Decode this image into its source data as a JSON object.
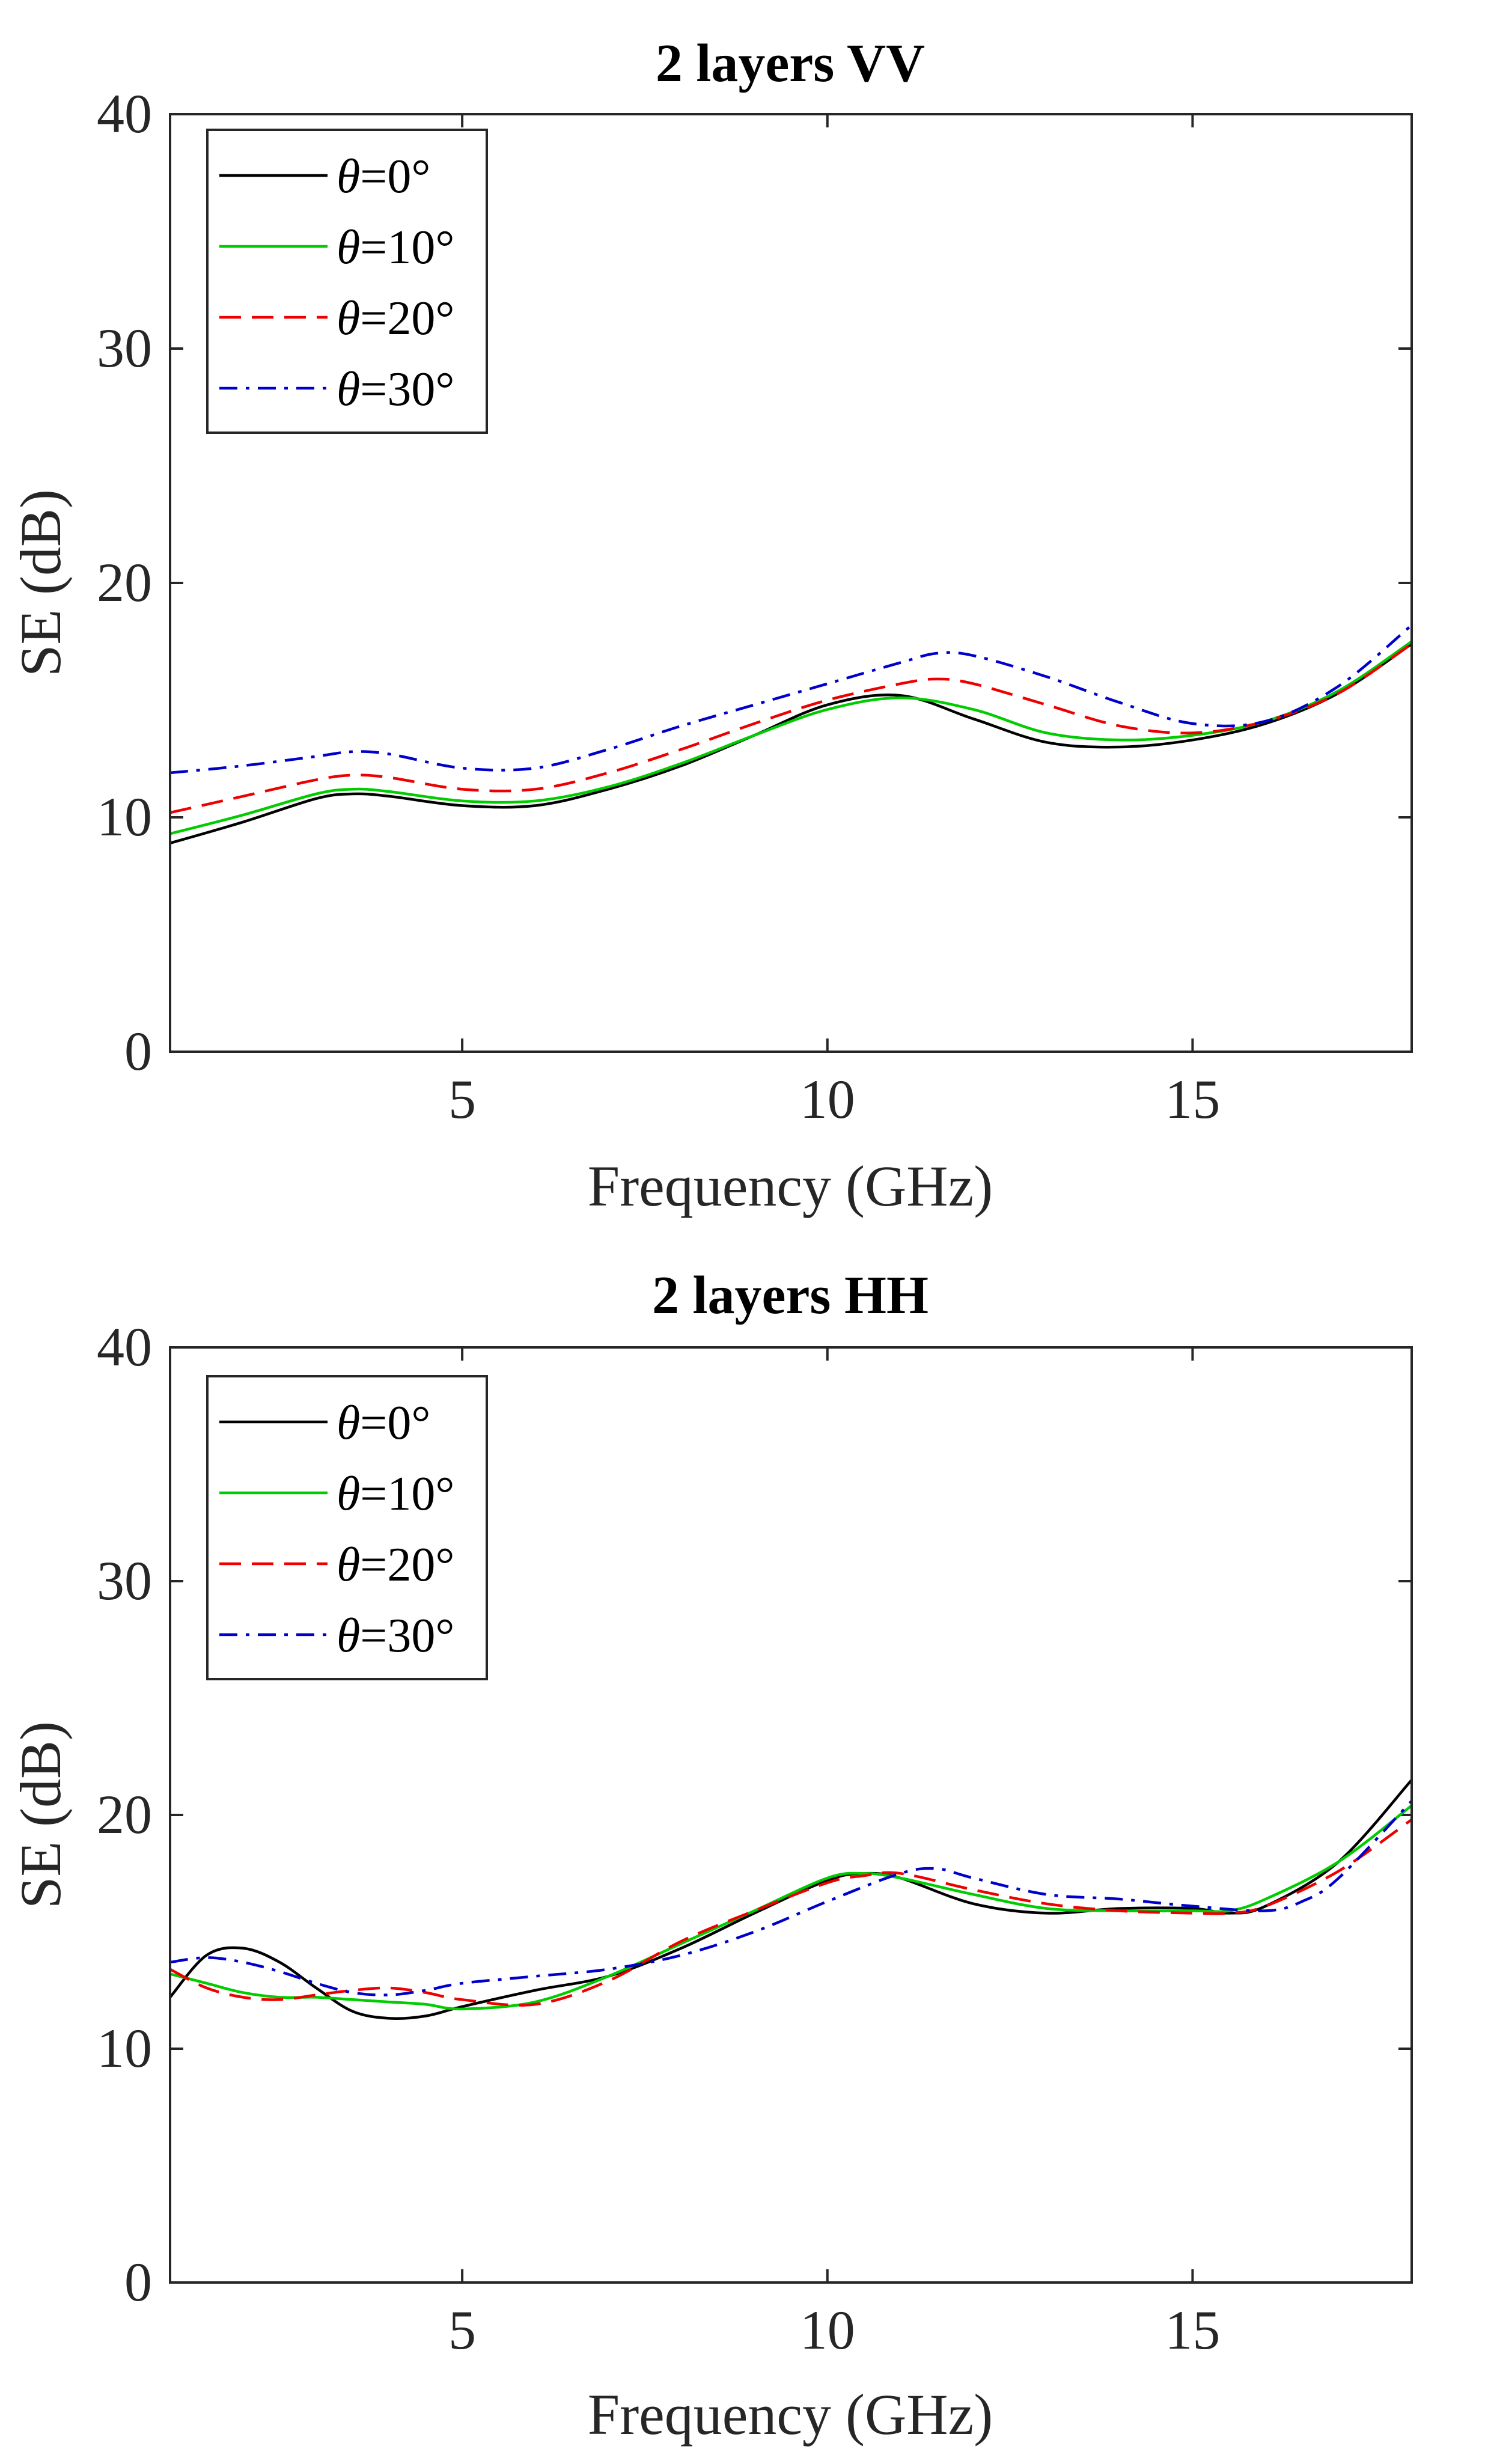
{
  "chart_data": [
    {
      "type": "line",
      "title": "2 layers VV",
      "xlabel": "Frequency (GHz)",
      "ylabel": "SE (dB)",
      "xlim": [
        1,
        18
      ],
      "ylim": [
        0,
        40
      ],
      "xticks": [
        5,
        10,
        15
      ],
      "yticks": [
        0,
        10,
        20,
        30,
        40
      ],
      "grid": false,
      "legend_position": "top-left",
      "series": [
        {
          "name": "θ=0°",
          "color": "#000000",
          "dash": "solid",
          "x": [
            1,
            2,
            3,
            3.5,
            4,
            5,
            6,
            7,
            8,
            9,
            10,
            11,
            12,
            13,
            14,
            15,
            16,
            17,
            18
          ],
          "values": [
            8.9,
            9.8,
            10.8,
            11.0,
            10.9,
            10.5,
            10.5,
            11.2,
            12.2,
            13.5,
            14.8,
            15.2,
            14.2,
            13.2,
            13.0,
            13.3,
            14.0,
            15.3,
            17.4
          ]
        },
        {
          "name": "θ=10°",
          "color": "#00cc00",
          "dash": "solid",
          "x": [
            1,
            2,
            3,
            3.5,
            4,
            5,
            6,
            7,
            8,
            9,
            10,
            11,
            12,
            13,
            14,
            15,
            16,
            17,
            18
          ],
          "values": [
            9.3,
            10.1,
            11.0,
            11.2,
            11.1,
            10.7,
            10.7,
            11.3,
            12.3,
            13.5,
            14.6,
            15.1,
            14.6,
            13.6,
            13.3,
            13.5,
            14.1,
            15.4,
            17.5
          ]
        },
        {
          "name": "θ=20°",
          "color": "#ee0000",
          "dash": "dashed",
          "x": [
            1,
            2,
            3,
            3.5,
            4,
            5,
            6,
            7,
            8,
            9,
            10,
            11,
            11.5,
            12,
            13,
            14,
            15,
            16,
            17,
            18
          ],
          "values": [
            10.2,
            10.9,
            11.6,
            11.8,
            11.7,
            11.2,
            11.2,
            11.9,
            12.9,
            14.0,
            15.0,
            15.7,
            15.9,
            15.7,
            14.8,
            13.9,
            13.6,
            14.1,
            15.3,
            17.4
          ]
        },
        {
          "name": "θ=30°",
          "color": "#0000cc",
          "dash": "dashdot",
          "x": [
            1,
            2,
            3,
            3.5,
            4,
            5,
            6,
            7,
            8,
            9,
            10,
            11,
            11.5,
            12,
            13,
            14,
            15,
            16,
            17,
            18
          ],
          "values": [
            11.9,
            12.2,
            12.6,
            12.8,
            12.7,
            12.1,
            12.1,
            12.9,
            13.9,
            14.8,
            15.7,
            16.6,
            17.0,
            16.9,
            16.0,
            14.9,
            14.0,
            14.1,
            15.6,
            18.2
          ]
        }
      ]
    },
    {
      "type": "line",
      "title": "2 layers HH",
      "xlabel": "Frequency (GHz)",
      "ylabel": "SE (dB)",
      "xlim": [
        1,
        18
      ],
      "ylim": [
        0,
        40
      ],
      "xticks": [
        5,
        10,
        15
      ],
      "yticks": [
        0,
        10,
        20,
        30,
        40
      ],
      "grid": false,
      "legend_position": "top-left",
      "series": [
        {
          "name": "θ=0°",
          "color": "#000000",
          "dash": "solid",
          "x": [
            1,
            1.5,
            2,
            2.5,
            3,
            3.5,
            4,
            4.5,
            5,
            6,
            7,
            8,
            9,
            10,
            10.5,
            11,
            12,
            13,
            14,
            15,
            15.5,
            16,
            17,
            18
          ],
          "values": [
            12.2,
            14.0,
            14.3,
            13.7,
            12.6,
            11.6,
            11.3,
            11.4,
            11.8,
            12.5,
            13.1,
            14.3,
            15.8,
            17.2,
            17.5,
            17.3,
            16.2,
            15.8,
            16.0,
            16.0,
            15.8,
            16.1,
            18.0,
            21.5
          ]
        },
        {
          "name": "θ=10°",
          "color": "#00cc00",
          "dash": "solid",
          "x": [
            1,
            1.5,
            2,
            2.5,
            3,
            3.5,
            4,
            4.5,
            5,
            6,
            7,
            8,
            9,
            10,
            10.5,
            11,
            12,
            13,
            14,
            15,
            15.5,
            16,
            17,
            18
          ],
          "values": [
            13.2,
            12.8,
            12.4,
            12.2,
            12.2,
            12.1,
            12.0,
            11.9,
            11.7,
            12.0,
            13.1,
            14.5,
            15.9,
            17.3,
            17.5,
            17.3,
            16.6,
            16.0,
            15.9,
            15.9,
            15.9,
            16.4,
            18.0,
            20.4
          ]
        },
        {
          "name": "θ=20°",
          "color": "#ee0000",
          "dash": "dashed",
          "x": [
            1,
            1.5,
            2,
            2.5,
            3,
            3.5,
            4,
            4.5,
            5,
            6,
            7,
            8,
            9,
            10,
            10.5,
            11,
            12,
            13,
            14,
            15,
            15.5,
            16,
            17,
            18
          ],
          "values": [
            13.4,
            12.6,
            12.2,
            12.1,
            12.3,
            12.5,
            12.6,
            12.4,
            12.1,
            11.9,
            12.9,
            14.6,
            15.9,
            17.1,
            17.4,
            17.5,
            16.8,
            16.2,
            15.9,
            15.8,
            15.8,
            16.1,
            17.6,
            19.8
          ]
        },
        {
          "name": "θ=30°",
          "color": "#0000cc",
          "dash": "dashdot",
          "x": [
            1,
            1.5,
            2,
            2.5,
            3,
            3.5,
            4,
            4.5,
            5,
            6,
            7,
            8,
            9,
            10,
            11,
            11.5,
            12,
            13,
            14,
            15,
            16,
            16.5,
            17,
            18
          ],
          "values": [
            13.7,
            13.9,
            13.7,
            13.3,
            12.8,
            12.4,
            12.3,
            12.5,
            12.8,
            13.1,
            13.4,
            14.0,
            15.0,
            16.3,
            17.5,
            17.7,
            17.3,
            16.6,
            16.4,
            16.1,
            15.9,
            16.3,
            17.3,
            20.6
          ]
        }
      ]
    }
  ]
}
